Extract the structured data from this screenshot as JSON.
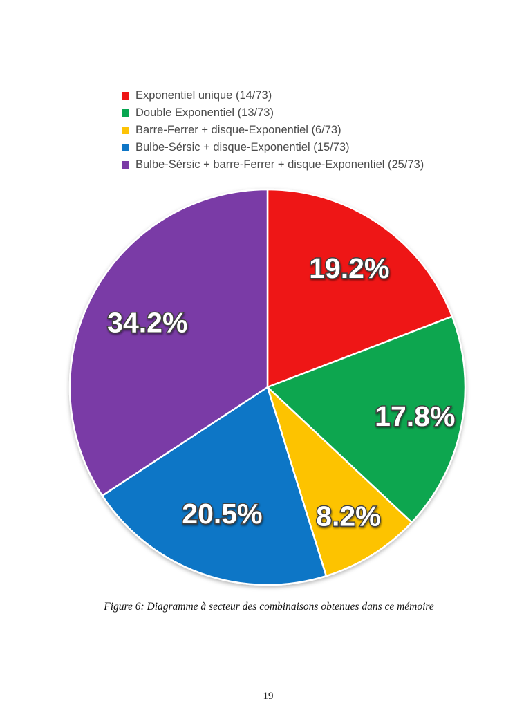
{
  "figure": {
    "caption": "Figure 6: Diagramme à secteur des combinaisons obtenues dans ce mémoire"
  },
  "page": {
    "number": "19"
  },
  "chart_data": {
    "type": "pie",
    "title": "",
    "total": 73,
    "direction": "clockwise",
    "start_angle_deg": 0,
    "legend_position": "top-left",
    "slice_border_color": "#ffffff",
    "label_text_color": "#ffffff",
    "label_outline_color": "#3f3f3f",
    "label_radius_frac": [
      0.73,
      0.76,
      0.77,
      0.68,
      0.69
    ],
    "slices": [
      {
        "label": "Exponentiel unique (14/73)",
        "count": 14,
        "percent": 19.2,
        "percent_label": "19.2%",
        "color": "#ee1515"
      },
      {
        "label": "Double Exponentiel  (13/73)",
        "count": 13,
        "percent": 17.8,
        "percent_label": "17.8%",
        "color": "#07a650"
      },
      {
        "label": "Barre-Ferrer + disque-Exponentiel (6/73)",
        "count": 6,
        "percent": 8.2,
        "percent_label": "8.2%",
        "color": "#fdc306"
      },
      {
        "label": "Bulbe-Sérsic + disque-Exponentiel (15/73)",
        "count": 15,
        "percent": 20.5,
        "percent_label": "20.5%",
        "color": "#0e76c6"
      },
      {
        "label": "Bulbe-Sérsic + barre-Ferrer + disque-Exponentiel (25/73)",
        "count": 25,
        "percent": 34.2,
        "percent_label": "34.2%",
        "color": "#7a3ba6"
      }
    ]
  }
}
